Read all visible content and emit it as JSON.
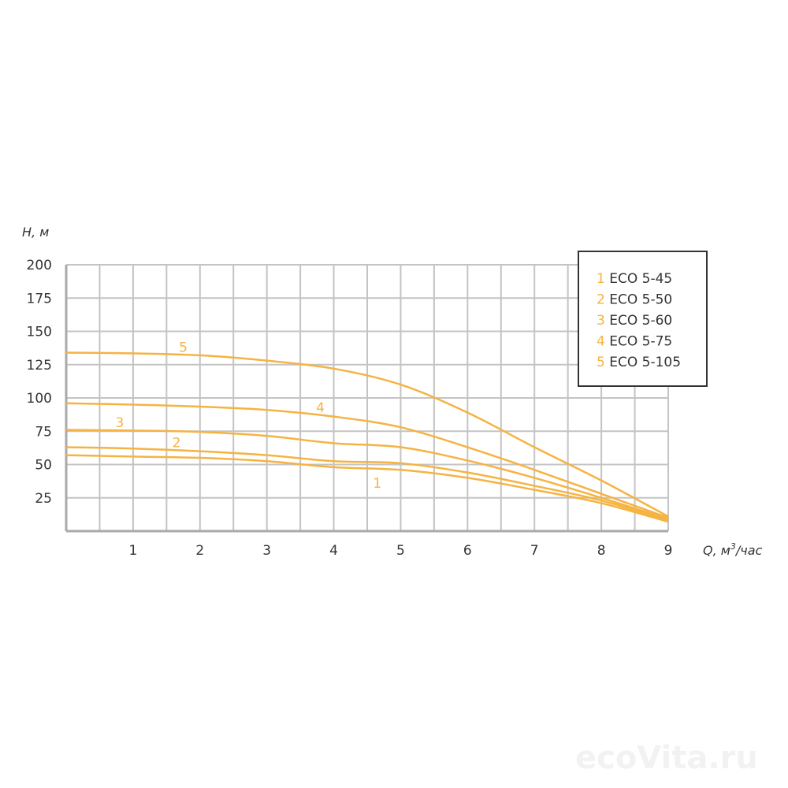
{
  "chart_data": {
    "type": "line",
    "title": "",
    "ylabel": "H, м",
    "xlabel_prefix": "Q, м",
    "xlabel_sup": "3",
    "xlabel_suffix": "/час",
    "xlim": [
      0,
      9
    ],
    "ylim": [
      0,
      200
    ],
    "x_ticks": [
      1,
      2,
      3,
      4,
      5,
      6,
      7,
      8,
      9
    ],
    "y_ticks": [
      25,
      50,
      75,
      100,
      125,
      150,
      175,
      200
    ],
    "grid": true,
    "legend_placement": "top-right",
    "line_color": "#f5b342",
    "x": [
      0,
      1,
      2,
      3,
      4,
      5,
      6,
      7,
      8,
      9
    ],
    "series": [
      {
        "name": "ECO 5-45",
        "num": "1",
        "label_at": 4.65,
        "values": [
          57,
          56,
          55,
          52.5,
          48,
          46,
          40,
          31,
          21,
          7
        ]
      },
      {
        "name": "ECO 5-50",
        "num": "2",
        "label_at": 1.65,
        "values": [
          63,
          62,
          60,
          57,
          52.5,
          51,
          44,
          34,
          23,
          8
        ]
      },
      {
        "name": "ECO 5-60",
        "num": "3",
        "label_at": 0.8,
        "values": [
          76,
          75.5,
          74.5,
          71.5,
          66,
          63,
          53,
          40,
          25,
          9
        ]
      },
      {
        "name": "ECO 5-75",
        "num": "4",
        "label_at": 3.8,
        "values": [
          96,
          95,
          93.5,
          91,
          86,
          78,
          63,
          46,
          28,
          10
        ]
      },
      {
        "name": "ECO 5-105",
        "num": "5",
        "label_at": 1.75,
        "values": [
          134,
          133.5,
          132,
          128,
          122,
          110,
          89,
          63,
          38,
          11
        ]
      }
    ]
  },
  "watermark": "ecoVita.ru"
}
